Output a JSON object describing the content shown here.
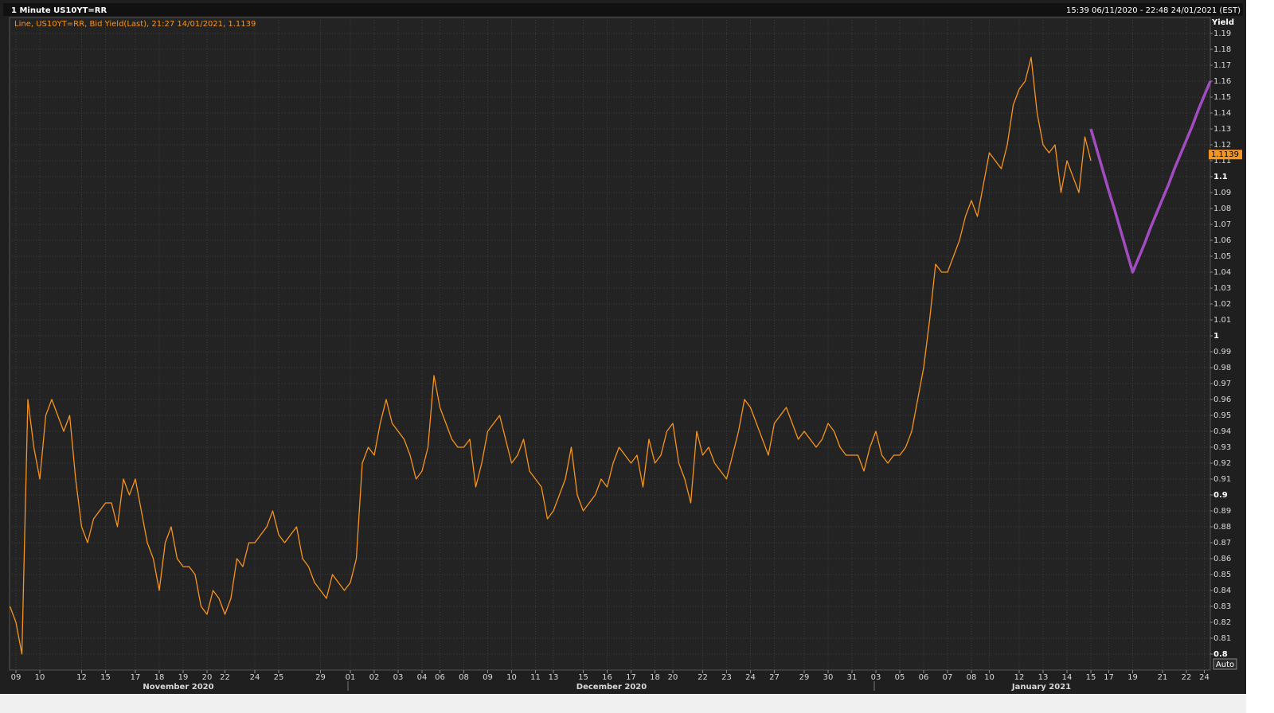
{
  "chart_data": {
    "type": "line",
    "title": "1 Minute US10YT=RR",
    "subtitle": "15:39 06/11/2020 - 22:48 24/01/2021 (EST)",
    "y_axis_label": "Yield",
    "scale_button": "Auto",
    "last_value": 1.1139,
    "month_labels": [
      "November 2020",
      "December 2020",
      "January 2021"
    ],
    "categories": [
      null,
      "09",
      null,
      null,
      null,
      "10",
      null,
      null,
      null,
      null,
      null,
      null,
      "12",
      null,
      null,
      null,
      "15",
      null,
      null,
      null,
      null,
      "17",
      null,
      null,
      null,
      "18",
      null,
      null,
      null,
      "19",
      null,
      null,
      null,
      "20",
      null,
      null,
      "22",
      null,
      null,
      null,
      null,
      "24",
      null,
      null,
      null,
      "25",
      null,
      null,
      null,
      null,
      null,
      null,
      "29",
      null,
      null,
      null,
      null,
      "01",
      null,
      null,
      null,
      "02",
      null,
      null,
      null,
      "03",
      null,
      null,
      null,
      "04",
      null,
      null,
      "06",
      null,
      null,
      null,
      "08",
      null,
      null,
      null,
      "09",
      null,
      null,
      null,
      "10",
      null,
      null,
      null,
      "11",
      null,
      null,
      "13",
      null,
      null,
      null,
      null,
      "15",
      null,
      null,
      null,
      "16",
      null,
      null,
      null,
      "17",
      null,
      null,
      null,
      "18",
      null,
      null,
      "20",
      null,
      null,
      null,
      null,
      "22",
      null,
      null,
      null,
      "23",
      null,
      null,
      null,
      "24",
      null,
      null,
      null,
      "27",
      null,
      null,
      null,
      null,
      "29",
      null,
      null,
      null,
      "30",
      null,
      null,
      null,
      "31",
      null,
      null,
      null,
      "03",
      null,
      null,
      null,
      "05",
      null,
      null,
      null,
      "06",
      null,
      null,
      null,
      "07",
      null,
      null,
      null,
      "08",
      null,
      null,
      "10",
      null,
      null,
      null,
      null,
      "12",
      null,
      null,
      null,
      "13",
      null,
      null,
      null,
      "14",
      null,
      null,
      null,
      "15",
      null,
      null,
      "17",
      null,
      null,
      null,
      "19",
      null,
      null,
      null,
      null,
      "21",
      null,
      null,
      null,
      "22",
      null,
      null,
      "24",
      null
    ],
    "series": [
      {
        "name": "Line, US10YT=RR, Bid Yield(Last), 21:27 14/01/2021, 1.1139",
        "color": "#f7941d",
        "values": [
          0.83,
          0.82,
          0.8,
          0.96,
          0.93,
          0.91,
          0.95,
          0.96,
          0.95,
          0.94,
          0.95,
          0.91,
          0.88,
          0.87,
          0.885,
          0.89,
          0.895,
          0.895,
          0.88,
          0.91,
          0.9,
          0.91,
          0.89,
          0.87,
          0.86,
          0.84,
          0.87,
          0.88,
          0.86,
          0.855,
          0.855,
          0.85,
          0.83,
          0.825,
          0.84,
          0.835,
          0.825,
          0.835,
          0.86,
          0.855,
          0.87,
          0.87,
          0.875,
          0.88,
          0.89,
          0.875,
          0.87,
          0.875,
          0.88,
          0.86,
          0.855,
          0.845,
          0.84,
          0.835,
          0.85,
          0.845,
          0.84,
          0.845,
          0.86,
          0.92,
          0.93,
          0.925,
          0.945,
          0.96,
          0.945,
          0.94,
          0.935,
          0.925,
          0.91,
          0.915,
          0.93,
          0.975,
          0.955,
          0.945,
          0.935,
          0.93,
          0.93,
          0.935,
          0.905,
          0.92,
          0.94,
          0.945,
          0.95,
          0.935,
          0.92,
          0.925,
          0.935,
          0.915,
          0.91,
          0.905,
          0.885,
          0.89,
          0.9,
          0.91,
          0.93,
          0.9,
          0.89,
          0.895,
          0.9,
          0.91,
          0.905,
          0.92,
          0.93,
          0.925,
          0.92,
          0.925,
          0.905,
          0.935,
          0.92,
          0.925,
          0.94,
          0.945,
          0.92,
          0.91,
          0.895,
          0.94,
          0.925,
          0.93,
          0.92,
          0.915,
          0.91,
          0.925,
          0.94,
          0.96,
          0.955,
          0.945,
          0.935,
          0.925,
          0.945,
          0.95,
          0.955,
          0.945,
          0.935,
          0.94,
          0.935,
          0.93,
          0.935,
          0.945,
          0.94,
          0.93,
          0.925,
          0.925,
          0.925,
          0.915,
          0.93,
          0.94,
          0.925,
          0.92,
          0.925,
          0.925,
          0.93,
          0.94,
          0.96,
          0.98,
          1.01,
          1.045,
          1.04,
          1.04,
          1.05,
          1.06,
          1.075,
          1.085,
          1.075,
          1.095,
          1.115,
          1.11,
          1.105,
          1.12,
          1.145,
          1.155,
          1.16,
          1.175,
          1.14,
          1.12,
          1.115,
          1.12,
          1.09,
          1.11,
          1.1,
          1.09,
          1.125,
          1.11,
          null,
          null,
          null,
          null,
          null,
          null,
          null,
          null,
          null,
          null,
          null,
          null,
          null,
          null,
          null,
          null,
          null,
          null,
          null,
          null
        ]
      },
      {
        "color": "#a24cc2",
        "values": [
          null,
          null,
          null,
          null,
          null,
          null,
          null,
          null,
          null,
          null,
          null,
          null,
          null,
          null,
          null,
          null,
          null,
          null,
          null,
          null,
          null,
          null,
          null,
          null,
          null,
          null,
          null,
          null,
          null,
          null,
          null,
          null,
          null,
          null,
          null,
          null,
          null,
          null,
          null,
          null,
          null,
          null,
          null,
          null,
          null,
          null,
          null,
          null,
          null,
          null,
          null,
          null,
          null,
          null,
          null,
          null,
          null,
          null,
          null,
          null,
          null,
          null,
          null,
          null,
          null,
          null,
          null,
          null,
          null,
          null,
          null,
          null,
          null,
          null,
          null,
          null,
          null,
          null,
          null,
          null,
          null,
          null,
          null,
          null,
          null,
          null,
          null,
          null,
          null,
          null,
          null,
          null,
          null,
          null,
          null,
          null,
          null,
          null,
          null,
          null,
          null,
          null,
          null,
          null,
          null,
          null,
          null,
          null,
          null,
          null,
          null,
          null,
          null,
          null,
          null,
          null,
          null,
          null,
          null,
          null,
          null,
          null,
          null,
          null,
          null,
          null,
          null,
          null,
          null,
          null,
          null,
          null,
          null,
          null,
          null,
          null,
          null,
          null,
          null,
          null,
          null,
          null,
          null,
          null,
          null,
          null,
          null,
          null,
          null,
          null,
          null,
          null,
          null,
          null,
          null,
          null,
          null,
          null,
          null,
          null,
          null,
          null,
          null,
          null,
          null,
          null,
          null,
          null,
          null,
          null,
          null,
          null,
          null,
          null,
          null,
          null,
          null,
          null,
          null,
          null,
          null,
          1.13,
          1.117,
          1.104,
          1.091,
          1.079,
          1.066,
          1.053,
          1.04,
          1.049,
          1.058,
          1.068,
          1.077,
          1.086,
          1.095,
          1.105,
          1.114,
          1.123,
          1.132,
          1.142,
          1.151,
          1.16
        ]
      }
    ],
    "ylim": [
      0.79,
      1.2
    ],
    "yticks": [
      0.8,
      0.81,
      0.82,
      0.83,
      0.84,
      0.85,
      0.86,
      0.87,
      0.88,
      0.89,
      0.9,
      0.91,
      0.92,
      0.93,
      0.94,
      0.95,
      0.96,
      0.97,
      0.98,
      0.99,
      1,
      1.01,
      1.02,
      1.03,
      1.04,
      1.05,
      1.06,
      1.07,
      1.08,
      1.09,
      1.1,
      1.11,
      1.12,
      1.13,
      1.14,
      1.15,
      1.16,
      1.17,
      1.18,
      1.19
    ],
    "grid": true
  }
}
